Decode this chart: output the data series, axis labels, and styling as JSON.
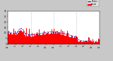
{
  "background_color": "#c8c8c8",
  "plot_bg_color": "#ffffff",
  "bar_color": "#ff0000",
  "line_color": "#0000cc",
  "n_minutes": 1440,
  "y_max": 30,
  "y_min": 0,
  "legend_actual_color": "#ff0000",
  "legend_median_color": "#0000cc",
  "vline_positions": [
    360,
    720,
    1080
  ],
  "vline_color": "#888888",
  "seed": 42
}
